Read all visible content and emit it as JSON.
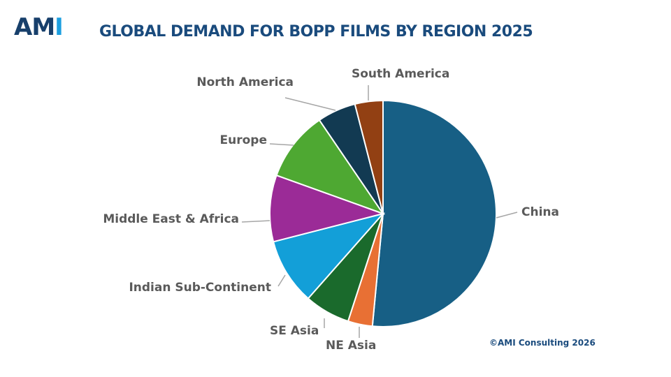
{
  "logo": {
    "main": "AM",
    "accent": "I"
  },
  "title": "GLOBAL DEMAND FOR BOPP FILMS BY REGION 2025",
  "copyright": "©AMI Consulting 2026",
  "colors": {
    "China": "#175f85",
    "NE Asia": "#e87034",
    "SE Asia": "#1a6a2c",
    "Indian Sub-Continent": "#139fd8",
    "Middle East & Africa": "#9b2b97",
    "Europe": "#4ea832",
    "North America": "#123a52",
    "South America": "#924013"
  },
  "chart_data": {
    "type": "pie",
    "title": "GLOBAL DEMAND FOR BOPP FILMS BY REGION 2025",
    "legend": "none (labels with leader lines)",
    "categories": [
      "China",
      "NE Asia",
      "SE Asia",
      "Indian Sub-Continent",
      "Middle East & Africa",
      "Europe",
      "North America",
      "South America"
    ],
    "values": [
      51.5,
      3.5,
      6.5,
      9.5,
      9.5,
      10.0,
      5.5,
      4.0
    ],
    "unit": "percent share (estimated)"
  }
}
